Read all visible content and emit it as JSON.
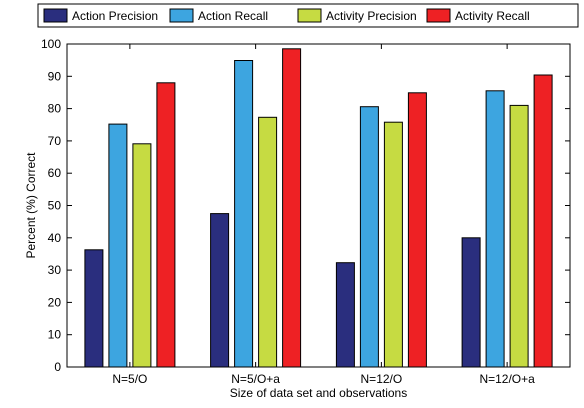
{
  "chart_data": {
    "type": "bar",
    "title": "",
    "xlabel": "Size of data set and observations",
    "ylabel": "Percent (%) Correct",
    "categories": [
      "N=5/O",
      "N=5/O+a",
      "N=12/O",
      "N=12/O+a"
    ],
    "ylim": [
      0,
      100
    ],
    "yticks": [
      0,
      10,
      20,
      30,
      40,
      50,
      60,
      70,
      80,
      90,
      100
    ],
    "ytick_labels": [
      "0",
      "10",
      "20",
      "30",
      "40",
      "50",
      "60",
      "70",
      "80",
      "90",
      "100"
    ],
    "grid": false,
    "legend_position": "top",
    "series": [
      {
        "name": "Action Precision",
        "color": "#2a2e7e",
        "values": [
          36.3,
          47.5,
          32.3,
          40.0
        ]
      },
      {
        "name": "Action Recall",
        "color": "#3da5e0",
        "values": [
          75.2,
          94.9,
          80.6,
          85.5
        ]
      },
      {
        "name": "Activity Precision",
        "color": "#c6db42",
        "values": [
          69.1,
          77.3,
          75.8,
          81.0
        ]
      },
      {
        "name": "Activity Recall",
        "color": "#ee2124",
        "values": [
          88.0,
          98.5,
          84.9,
          90.4
        ]
      }
    ]
  }
}
